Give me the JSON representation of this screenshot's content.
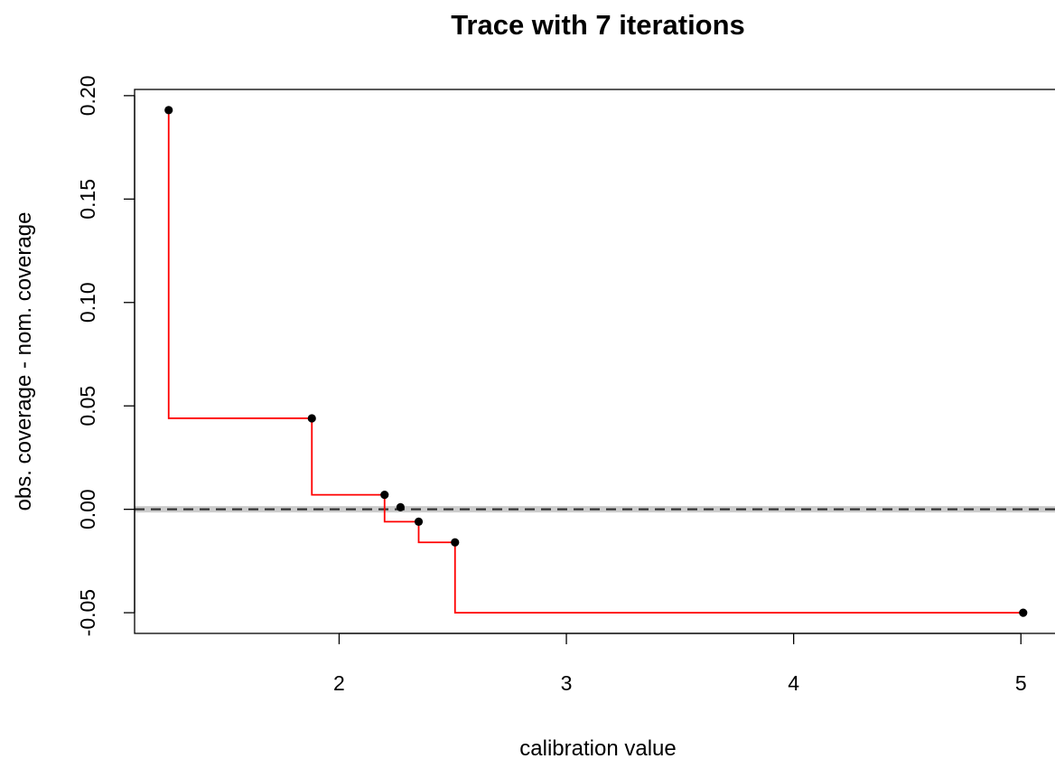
{
  "chart_data": {
    "type": "line",
    "title": "Trace with 7 iterations",
    "xlabel": "calibration value",
    "ylabel": "obs. coverage - nom. coverage",
    "xlim": [
      1.1,
      5.15
    ],
    "ylim": [
      -0.06,
      0.203
    ],
    "x_ticks": [
      2,
      3,
      4,
      5
    ],
    "x_tick_labels": [
      "2",
      "3",
      "4",
      "5"
    ],
    "y_ticks": [
      -0.05,
      0,
      0.05,
      0.1,
      0.15,
      0.2
    ],
    "y_tick_labels": [
      "-0.05",
      "0.00",
      "0.05",
      "0.10",
      "0.15",
      "0.20"
    ],
    "grid": false,
    "legend": "none",
    "series": [
      {
        "line_style": "step",
        "x": [
          1.25,
          1.88,
          2.2,
          2.35,
          2.51,
          5.01
        ],
        "values": [
          0.193,
          0.044,
          0.007,
          -0.006,
          -0.016,
          -0.05
        ]
      }
    ],
    "points": {
      "x": [
        1.25,
        5.01,
        1.88,
        2.51,
        2.2,
        2.35,
        2.27
      ],
      "y": [
        0.193,
        -0.05,
        0.044,
        -0.016,
        0.007,
        -0.006,
        0.001
      ]
    },
    "reference_line": {
      "y": 0,
      "style": "dashed"
    },
    "colors": {
      "trace": "#ff0000",
      "points": "#000000",
      "reference_band": "#cccccc",
      "reference_line": "#333333"
    }
  }
}
